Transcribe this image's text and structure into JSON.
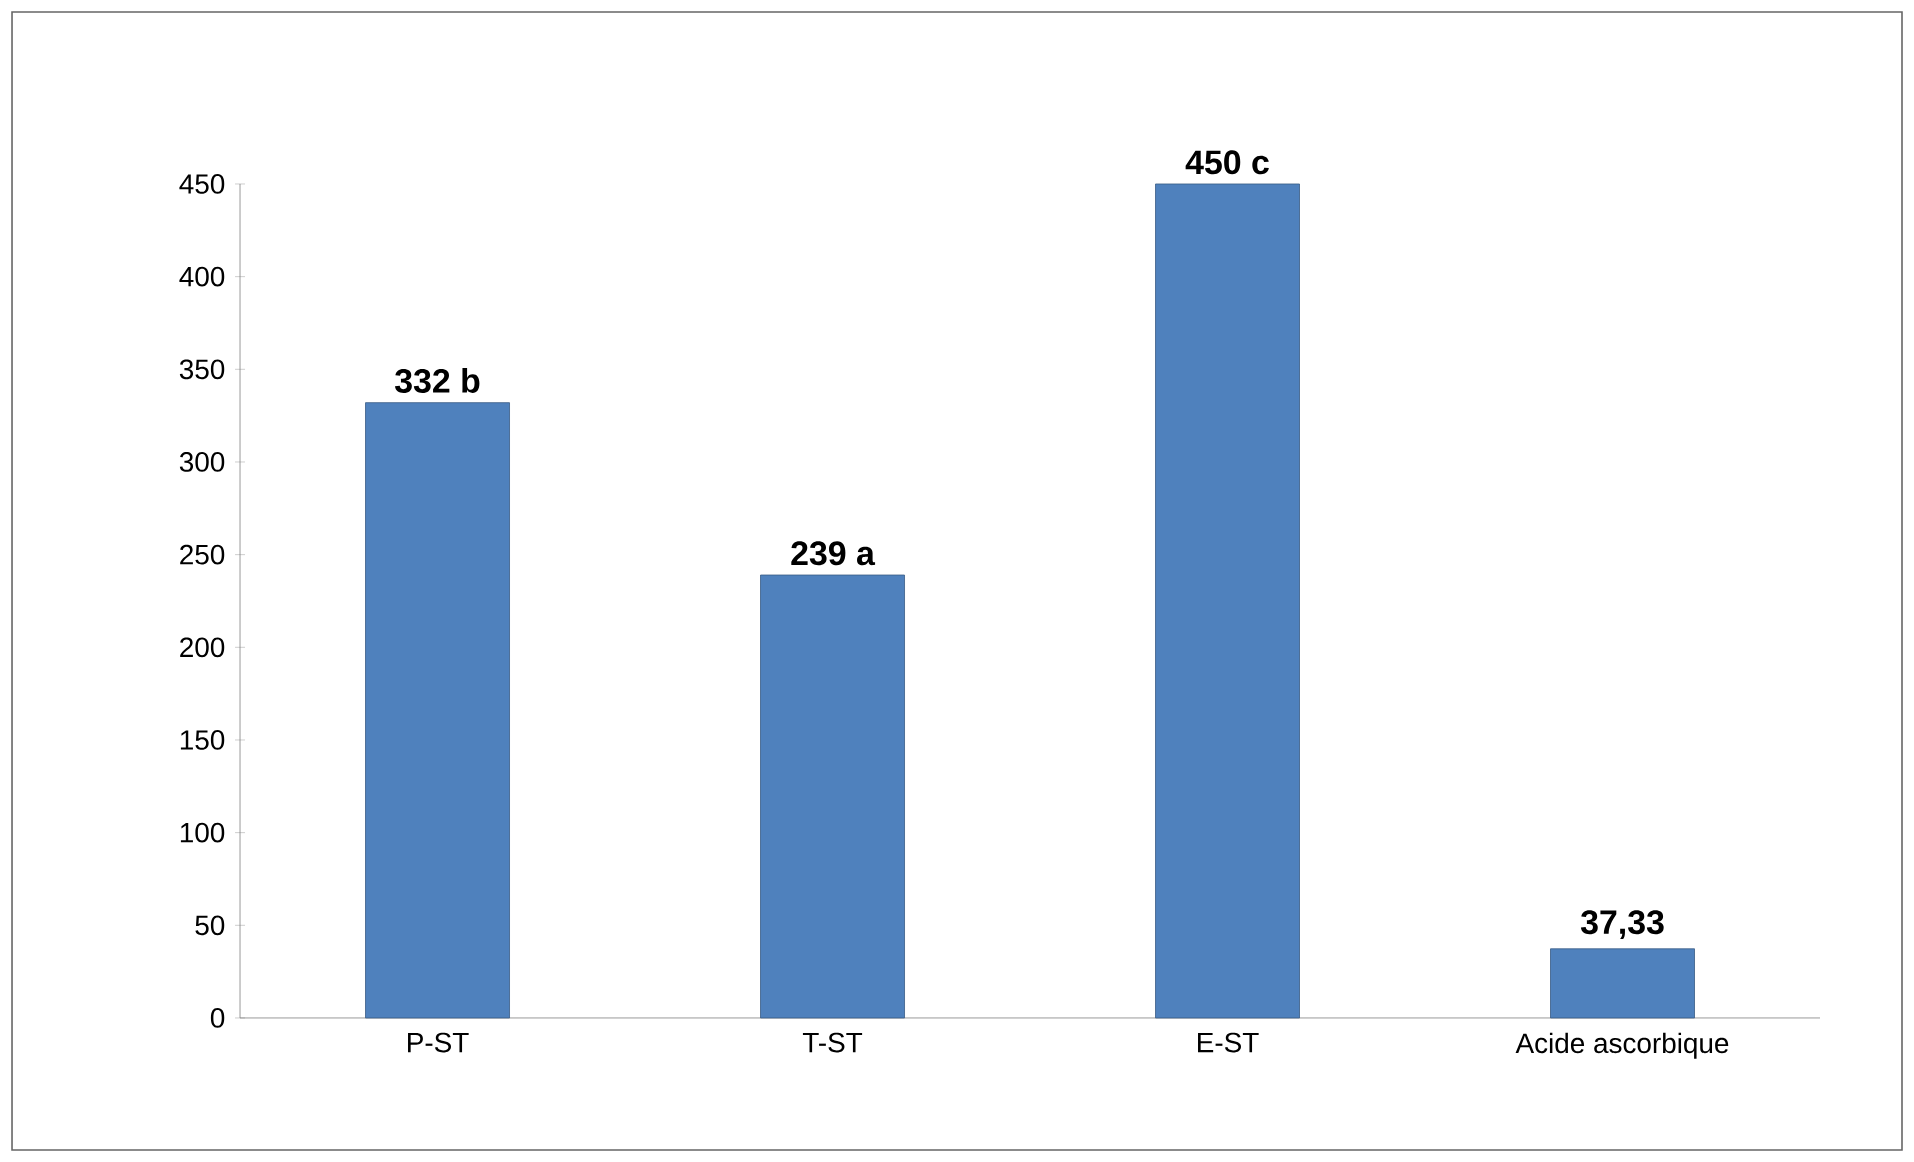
{
  "chart_data": {
    "type": "bar",
    "categories": [
      "P-ST",
      "T-ST",
      "E-ST",
      "Acide ascorbique"
    ],
    "values": [
      332,
      239,
      450,
      37.33
    ],
    "value_labels": [
      "332 b",
      "239 a",
      "450 c",
      "37,33"
    ],
    "color": "#4f81bd",
    "ylim": [
      0,
      450
    ],
    "yticks": [
      0,
      50,
      100,
      150,
      200,
      250,
      300,
      350,
      400,
      450
    ],
    "grid": false
  }
}
